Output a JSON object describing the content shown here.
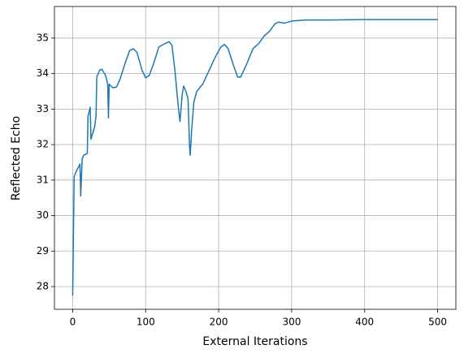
{
  "chart_data": {
    "type": "line",
    "x_label": "External Iterations",
    "y_label": "Reflected Echo",
    "x": [
      0,
      2,
      5,
      10,
      11,
      13,
      15,
      20,
      21,
      24,
      25,
      30,
      32,
      33,
      37,
      40,
      45,
      48,
      49,
      50,
      55,
      60,
      65,
      72,
      78,
      83,
      88,
      95,
      100,
      105,
      112,
      118,
      125,
      132,
      136,
      140,
      145,
      147,
      150,
      152,
      155,
      158,
      160,
      161,
      163,
      166,
      170,
      178,
      186,
      195,
      203,
      208,
      213,
      220,
      226,
      230,
      238,
      247,
      255,
      262,
      270,
      277,
      282,
      290,
      300,
      320,
      350,
      400,
      500
    ],
    "values": [
      27.75,
      31.1,
      31.25,
      31.45,
      30.55,
      31.6,
      31.7,
      31.75,
      32.8,
      33.05,
      32.15,
      32.5,
      32.8,
      33.9,
      34.1,
      34.12,
      33.95,
      33.7,
      32.75,
      33.7,
      33.6,
      33.62,
      33.85,
      34.3,
      34.65,
      34.7,
      34.6,
      34.1,
      33.88,
      33.95,
      34.35,
      34.75,
      34.83,
      34.9,
      34.8,
      34.1,
      33.0,
      32.65,
      33.4,
      33.65,
      33.5,
      33.3,
      32.0,
      31.7,
      32.4,
      33.2,
      33.5,
      33.7,
      34.05,
      34.45,
      34.75,
      34.82,
      34.7,
      34.25,
      33.9,
      33.9,
      34.25,
      34.7,
      34.85,
      35.05,
      35.2,
      35.4,
      35.45,
      35.42,
      35.48,
      35.51,
      35.51,
      35.52,
      35.52
    ],
    "color": "#1f77b4",
    "xlim": [
      -25,
      525
    ],
    "ylim": [
      27.36,
      35.89
    ],
    "xticks": [
      0,
      100,
      200,
      300,
      400,
      500
    ],
    "yticks": [
      28,
      29,
      30,
      31,
      32,
      33,
      34,
      35
    ],
    "grid": true
  }
}
